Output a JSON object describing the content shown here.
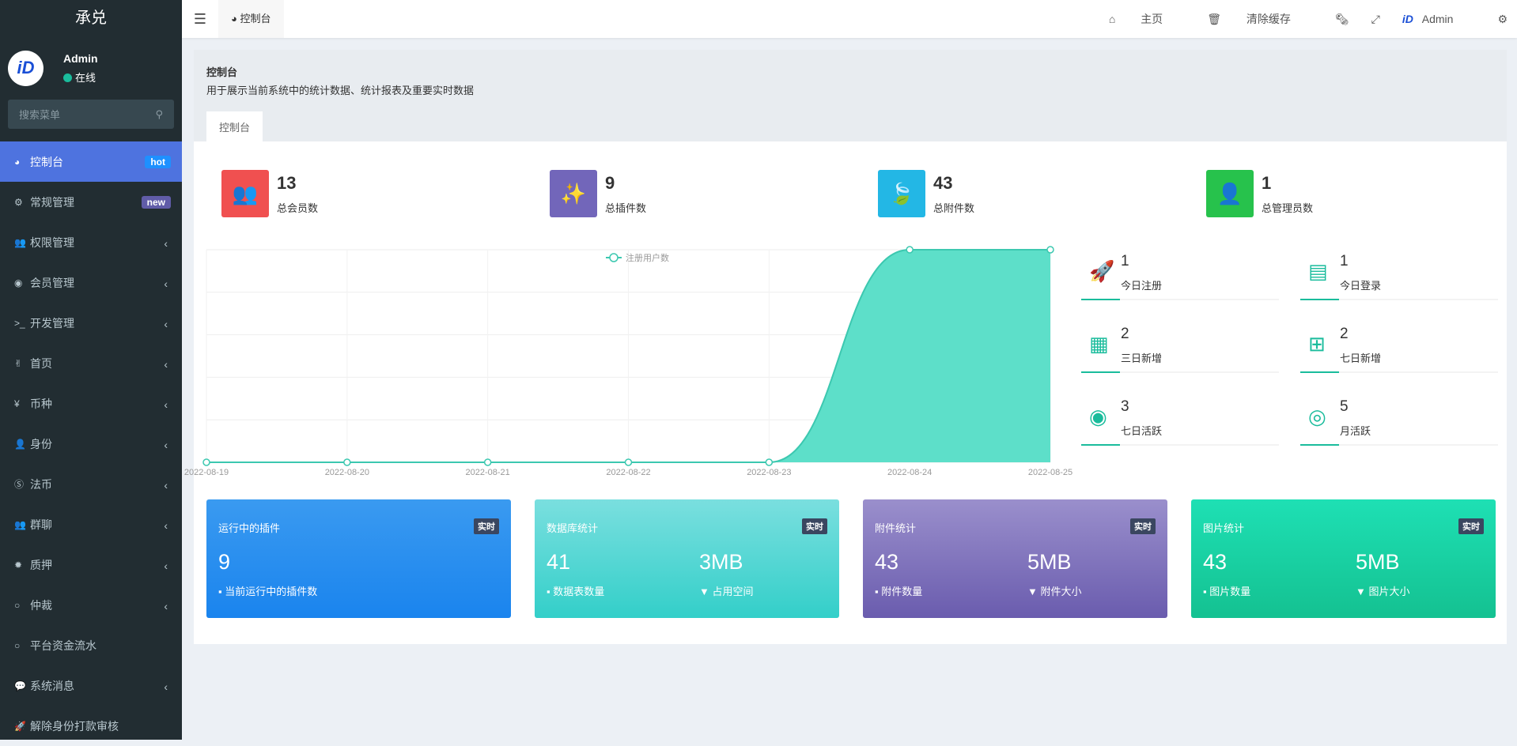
{
  "sidebar": {
    "logo": "承兑",
    "user": {
      "name": "Admin",
      "status": "在线"
    },
    "search_placeholder": "搜索菜单",
    "items": [
      {
        "label": "控制台",
        "icon": "dashboard-icon",
        "badge": "hot",
        "badge_color": "#1e90ff",
        "active": true
      },
      {
        "label": "常规管理",
        "icon": "cogs-icon",
        "badge": "new",
        "badge_color": "#605ca8"
      },
      {
        "label": "权限管理",
        "icon": "group-icon",
        "arrow": "‹"
      },
      {
        "label": "会员管理",
        "icon": "user-circle-icon",
        "arrow": "‹"
      },
      {
        "label": "开发管理",
        "icon": "terminal-icon",
        "arrow": "‹"
      },
      {
        "label": "首页",
        "icon": "hand-peace-icon",
        "arrow": "‹"
      },
      {
        "label": "币种",
        "icon": "yen-icon",
        "arrow": "‹"
      },
      {
        "label": "身份",
        "icon": "user-icon",
        "arrow": "‹"
      },
      {
        "label": "法币",
        "icon": "skype-icon",
        "arrow": "‹"
      },
      {
        "label": "群聊",
        "icon": "group-icon",
        "arrow": "‹"
      },
      {
        "label": "质押",
        "icon": "certificate-icon",
        "arrow": "‹"
      },
      {
        "label": "仲裁",
        "icon": "circle-o-icon",
        "arrow": "‹"
      },
      {
        "label": "平台资金流水",
        "icon": "circle-o-icon"
      },
      {
        "label": "系统消息",
        "icon": "comment-icon",
        "arrow": "‹"
      },
      {
        "label": "解除身份打款审核",
        "icon": "rocket-icon"
      }
    ]
  },
  "topbar": {
    "tab": "控制台",
    "home": "主页",
    "clear_cache": "清除缓存",
    "user": "Admin"
  },
  "page": {
    "title": "控制台",
    "description": "用于展示当前系统中的统计数据、统计报表及重要实时数据",
    "tab": "控制台"
  },
  "stats": [
    {
      "value": "13",
      "label": "总会员数",
      "color": "#f05050",
      "icon": "users-icon"
    },
    {
      "value": "9",
      "label": "总插件数",
      "color": "#7266ba",
      "icon": "magic-icon"
    },
    {
      "value": "43",
      "label": "总附件数",
      "color": "#23b7e5",
      "icon": "leaf-icon"
    },
    {
      "value": "1",
      "label": "总管理员数",
      "color": "#27c24c",
      "icon": "user-icon"
    }
  ],
  "mini": [
    {
      "value": "1",
      "label": "今日注册",
      "icon": "rocket-icon"
    },
    {
      "value": "1",
      "label": "今日登录",
      "icon": "vcard-icon"
    },
    {
      "value": "2",
      "label": "三日新增",
      "icon": "calendar-icon"
    },
    {
      "value": "2",
      "label": "七日新增",
      "icon": "calendar-plus-icon"
    },
    {
      "value": "3",
      "label": "七日活跃",
      "icon": "user-circle-icon"
    },
    {
      "value": "5",
      "label": "月活跃",
      "icon": "user-circle-o-icon"
    }
  ],
  "cards": [
    {
      "title": "运行中的插件",
      "tag": "实时",
      "v1": "9",
      "s1": "当前运行中的插件数",
      "gradient": [
        "#3a9af0",
        "#1a84ee"
      ]
    },
    {
      "title": "数据库统计",
      "tag": "实时",
      "v1": "41",
      "s1": "数据表数量",
      "v2": "3MB",
      "s2": "占用空间",
      "gradient": [
        "#7adfdf",
        "#33cfc9"
      ]
    },
    {
      "title": "附件统计",
      "tag": "实时",
      "v1": "43",
      "s1": "附件数量",
      "v2": "5MB",
      "s2": "附件大小",
      "gradient": [
        "#9a8fcc",
        "#6a5cae"
      ]
    },
    {
      "title": "图片统计",
      "tag": "实时",
      "v1": "43",
      "s1": "图片数量",
      "v2": "5MB",
      "s2": "图片大小",
      "gradient": [
        "#1ee0b4",
        "#14c191"
      ]
    }
  ],
  "chart_data": {
    "type": "area",
    "legend": "注册用户数",
    "legend_position": "top-center",
    "x": [
      "2022-08-19",
      "2022-08-20",
      "2022-08-21",
      "2022-08-22",
      "2022-08-23",
      "2022-08-24",
      "2022-08-25"
    ],
    "values": [
      0,
      0,
      0,
      0,
      0,
      1,
      1
    ],
    "ylim": [
      0,
      1
    ],
    "grid": true,
    "color": "#5ddfc9"
  }
}
